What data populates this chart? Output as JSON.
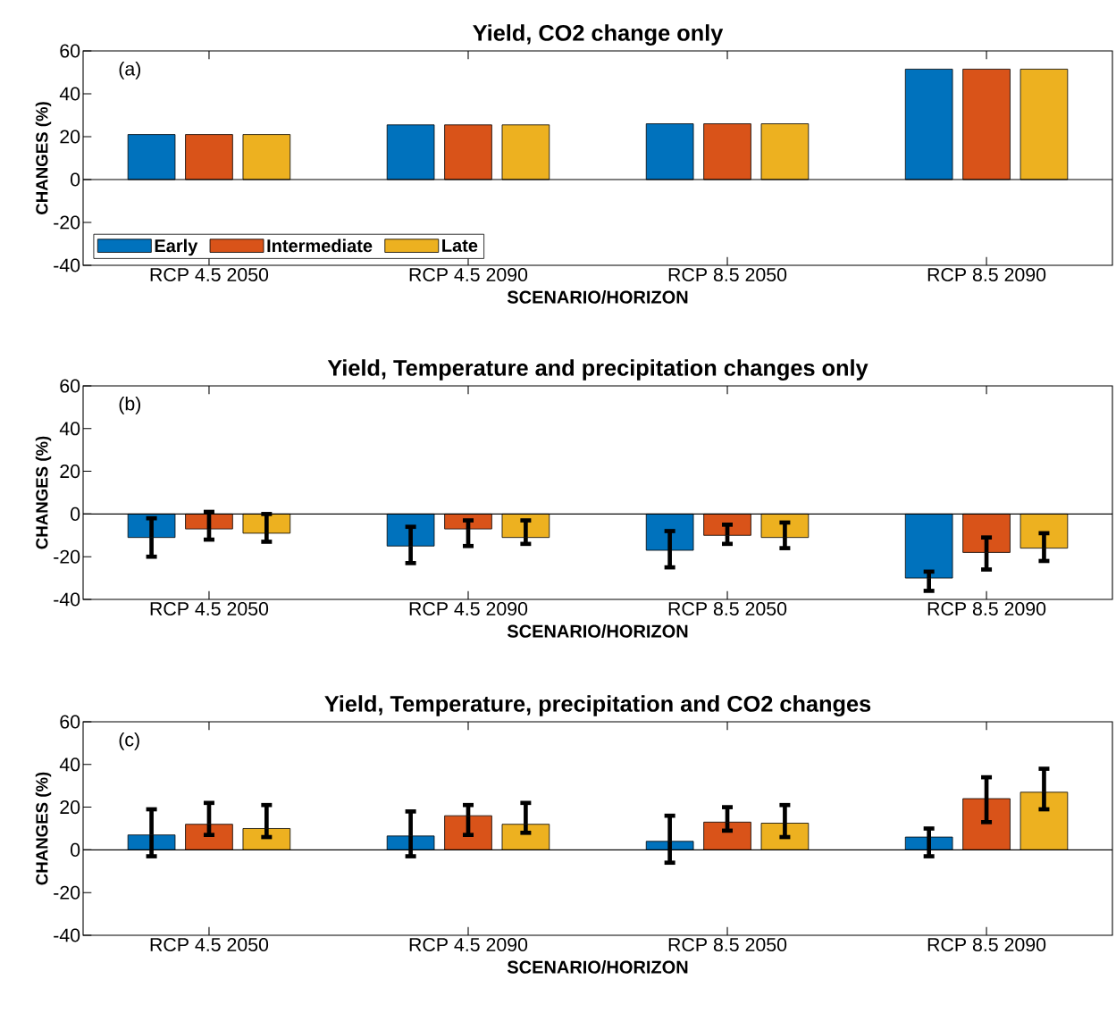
{
  "chart_data": [
    {
      "type": "bar",
      "title": "Yield, CO2 change only",
      "xlabel": "SCENARIO/HORIZON",
      "ylabel": "CHANGES (%)",
      "annotations": [
        "(a)"
      ],
      "categories": [
        "RCP 4.5 2050",
        "RCP 4.5 2090",
        "RCP 8.5 2050",
        "RCP 8.5 2090"
      ],
      "ylim": [
        -40,
        60
      ],
      "yticks": [
        -40,
        -20,
        0,
        20,
        40,
        60
      ],
      "legend": "bottom left",
      "series": [
        {
          "name": "Early",
          "color": "#0072bd",
          "values": [
            21,
            25.5,
            26,
            51.5
          ]
        },
        {
          "name": "Intermediate",
          "color": "#d95319",
          "values": [
            21,
            25.5,
            26,
            51.5
          ]
        },
        {
          "name": "Late",
          "color": "#edb120",
          "values": [
            21,
            25.5,
            26,
            51.5
          ]
        }
      ]
    },
    {
      "type": "bar",
      "title": "Yield, Temperature and precipitation changes only",
      "xlabel": "SCENARIO/HORIZON",
      "ylabel": "CHANGES (%)",
      "annotations": [
        "(b)"
      ],
      "categories": [
        "RCP 4.5 2050",
        "RCP 4.5 2090",
        "RCP 8.5 2050",
        "RCP 8.5 2090"
      ],
      "ylim": [
        -40,
        60
      ],
      "yticks": [
        -40,
        -20,
        0,
        20,
        40,
        60
      ],
      "series": [
        {
          "color": "#0072bd",
          "values": [
            -11,
            -15,
            -17,
            -30
          ],
          "errors": [
            [
              -20,
              -2
            ],
            [
              -23,
              -6
            ],
            [
              -25,
              -8
            ],
            [
              -36,
              -27
            ]
          ]
        },
        {
          "color": "#d95319",
          "values": [
            -7,
            -7,
            -10,
            -18
          ],
          "errors": [
            [
              -12,
              1
            ],
            [
              -15,
              -3
            ],
            [
              -14,
              -5
            ],
            [
              -26,
              -11
            ]
          ]
        },
        {
          "color": "#edb120",
          "values": [
            -9,
            -11,
            -11,
            -16
          ],
          "errors": [
            [
              -13,
              0
            ],
            [
              -14,
              -3
            ],
            [
              -16,
              -4
            ],
            [
              -22,
              -9
            ]
          ]
        }
      ]
    },
    {
      "type": "bar",
      "title": "Yield, Temperature, precipitation and CO2 changes",
      "xlabel": "SCENARIO/HORIZON",
      "ylabel": "CHANGES (%)",
      "annotations": [
        "(c)"
      ],
      "categories": [
        "RCP 4.5 2050",
        "RCP 4.5 2090",
        "RCP 8.5 2050",
        "RCP 8.5 2090"
      ],
      "ylim": [
        -40,
        60
      ],
      "yticks": [
        -40,
        -20,
        0,
        20,
        40,
        60
      ],
      "series": [
        {
          "color": "#0072bd",
          "values": [
            7,
            6.5,
            4,
            6
          ],
          "errors": [
            [
              -3,
              19
            ],
            [
              -3,
              18
            ],
            [
              -6,
              16
            ],
            [
              -3,
              10
            ]
          ]
        },
        {
          "color": "#d95319",
          "values": [
            12,
            16,
            13,
            24
          ],
          "errors": [
            [
              7,
              22
            ],
            [
              7,
              21
            ],
            [
              9,
              20
            ],
            [
              13,
              34
            ]
          ]
        },
        {
          "color": "#edb120",
          "values": [
            10,
            12,
            12.5,
            27
          ],
          "errors": [
            [
              6,
              21
            ],
            [
              8,
              22
            ],
            [
              6,
              21
            ],
            [
              19,
              38
            ]
          ]
        }
      ]
    }
  ]
}
